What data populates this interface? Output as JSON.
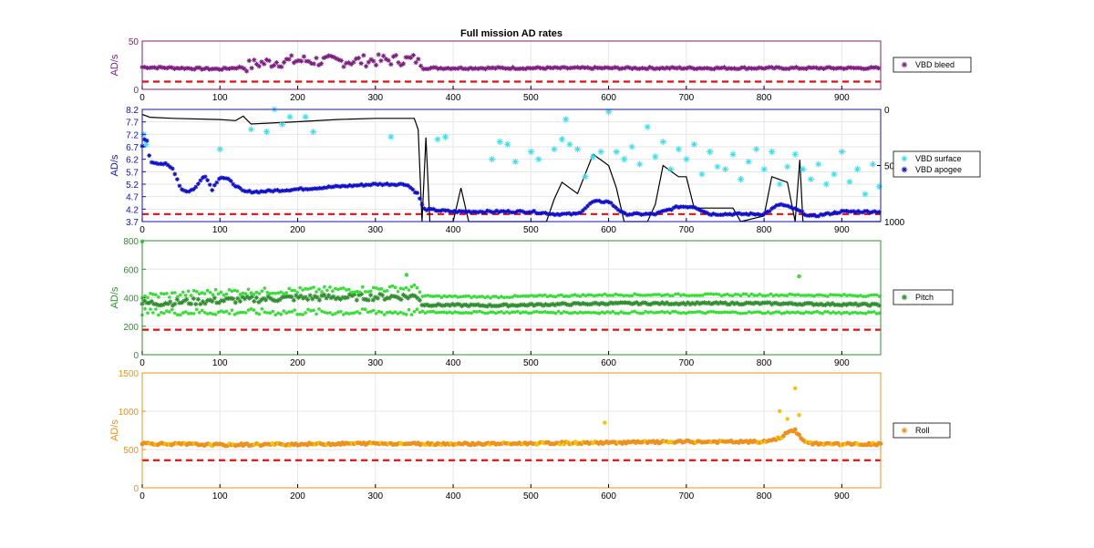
{
  "title": "Full mission AD rates",
  "colors": {
    "vbd_bleed": "#7e1e80",
    "vbd_surface": "#33e0ee",
    "vbd_apogee": "#1010cc",
    "pitch": "#2f8f2f",
    "pitch_light": "#33e033",
    "roll": "#f0901a",
    "roll_light": "#f5c400",
    "threshold": "#dd1111",
    "black_line": "#000000",
    "grid": "#e6e6e6"
  },
  "chart_data": [
    {
      "type": "scatter",
      "ylabel": "AD/s",
      "xlim": [
        0,
        950
      ],
      "ylim": [
        0,
        50
      ],
      "xticks": [
        "0",
        "100",
        "200",
        "300",
        "400",
        "500",
        "600",
        "700",
        "800",
        "900"
      ],
      "yticks": [
        "0",
        "50"
      ],
      "threshold": 8,
      "legend": [
        {
          "label": "VBD bleed",
          "marker": "*"
        }
      ],
      "series": [
        {
          "name": "VBD bleed",
          "segments": [
            {
              "x": [
                0,
                50,
                100,
                130,
                150,
                200,
                250,
                300,
                355,
                360,
                450,
                500,
                600,
                700,
                800,
                950
              ],
              "y": [
                23,
                22,
                21,
                23,
                27,
                30,
                29,
                30,
                31,
                22,
                22,
                22,
                22,
                22,
                22,
                22
              ]
            }
          ]
        }
      ]
    },
    {
      "type": "scatter",
      "ylabel": "AD/s",
      "xlim": [
        0,
        950
      ],
      "ylim": [
        3.7,
        8.2
      ],
      "xticks": [
        "0",
        "100",
        "200",
        "300",
        "400",
        "500",
        "600",
        "700",
        "800",
        "900"
      ],
      "yticks": [
        "3.7",
        "4.2",
        "4.7",
        "5.2",
        "5.7",
        "6.2",
        "6.7",
        "7.2",
        "7.7",
        "8.2"
      ],
      "y2lim": [
        0,
        1000
      ],
      "y2ticks": [
        "0",
        "500",
        "1000"
      ],
      "threshold": 4.0,
      "legend": [
        {
          "label": "VBD surface",
          "marker": "*"
        },
        {
          "label": "VBD apogee",
          "marker": "*"
        }
      ],
      "series": [
        {
          "name": "VBD surface",
          "points": [
            [
              2,
              7.2
            ],
            [
              5,
              6.8
            ],
            [
              100,
              6.6
            ],
            [
              140,
              7.4
            ],
            [
              160,
              7.3
            ],
            [
              170,
              8.2
            ],
            [
              180,
              7.6
            ],
            [
              190,
              7.9
            ],
            [
              210,
              7.9
            ],
            [
              220,
              7.3
            ],
            [
              320,
              7.1
            ],
            [
              380,
              7.0
            ],
            [
              390,
              7.1
            ],
            [
              450,
              6.2
            ],
            [
              460,
              6.9
            ],
            [
              470,
              6.8
            ],
            [
              480,
              6.1
            ],
            [
              500,
              6.5
            ],
            [
              510,
              6.2
            ],
            [
              530,
              6.6
            ],
            [
              540,
              7.0
            ],
            [
              545,
              7.8
            ],
            [
              550,
              6.8
            ],
            [
              560,
              6.6
            ],
            [
              570,
              5.5
            ],
            [
              580,
              6.3
            ],
            [
              590,
              6.5
            ],
            [
              600,
              8.1
            ],
            [
              610,
              6.5
            ],
            [
              620,
              6.2
            ],
            [
              630,
              6.7
            ],
            [
              640,
              6.0
            ],
            [
              650,
              7.5
            ],
            [
              660,
              6.3
            ],
            [
              670,
              6.9
            ],
            [
              680,
              5.8
            ],
            [
              690,
              6.6
            ],
            [
              700,
              6.2
            ],
            [
              710,
              6.8
            ],
            [
              720,
              5.6
            ],
            [
              730,
              6.5
            ],
            [
              740,
              5.9
            ],
            [
              750,
              5.8
            ],
            [
              760,
              6.4
            ],
            [
              770,
              5.4
            ],
            [
              780,
              6.1
            ],
            [
              790,
              6.6
            ],
            [
              800,
              5.8
            ],
            [
              810,
              6.5
            ],
            [
              820,
              5.2
            ],
            [
              830,
              5.9
            ],
            [
              840,
              6.4
            ],
            [
              850,
              5.8
            ],
            [
              860,
              5.4
            ],
            [
              870,
              6.0
            ],
            [
              880,
              5.2
            ],
            [
              890,
              5.6
            ],
            [
              900,
              6.5
            ],
            [
              910,
              5.3
            ],
            [
              920,
              5.8
            ],
            [
              930,
              4.8
            ],
            [
              940,
              6.0
            ],
            [
              948,
              5.1
            ]
          ]
        },
        {
          "name": "VBD apogee",
          "points": [
            [
              0,
              6.7
            ],
            [
              5,
              7.2
            ],
            [
              10,
              6.1
            ],
            [
              30,
              6.0
            ],
            [
              40,
              5.8
            ],
            [
              50,
              5.0
            ],
            [
              60,
              4.9
            ],
            [
              70,
              5.1
            ],
            [
              80,
              5.6
            ],
            [
              90,
              5.0
            ],
            [
              100,
              5.5
            ],
            [
              110,
              5.4
            ],
            [
              130,
              4.9
            ],
            [
              150,
              4.9
            ],
            [
              200,
              5.0
            ],
            [
              250,
              5.1
            ],
            [
              300,
              5.2
            ],
            [
              340,
              5.2
            ],
            [
              355,
              4.8
            ],
            [
              362,
              4.2
            ],
            [
              400,
              4.1
            ],
            [
              420,
              4.1
            ],
            [
              450,
              4.1
            ],
            [
              500,
              4.1
            ],
            [
              530,
              4.0
            ],
            [
              560,
              4.0
            ],
            [
              580,
              4.5
            ],
            [
              600,
              4.5
            ],
            [
              620,
              4.0
            ],
            [
              660,
              4.0
            ],
            [
              690,
              4.3
            ],
            [
              710,
              4.3
            ],
            [
              730,
              4.0
            ],
            [
              800,
              4.0
            ],
            [
              820,
              4.4
            ],
            [
              840,
              4.2
            ],
            [
              860,
              3.9
            ],
            [
              900,
              4.1
            ],
            [
              948,
              4.1
            ]
          ]
        },
        {
          "name": "",
          "axis": "right",
          "line": [
            [
              0,
              45
            ],
            [
              10,
              70
            ],
            [
              40,
              80
            ],
            [
              100,
              90
            ],
            [
              120,
              100
            ],
            [
              130,
              60
            ],
            [
              140,
              130
            ],
            [
              200,
              110
            ],
            [
              250,
              90
            ],
            [
              300,
              80
            ],
            [
              350,
              80
            ],
            [
              355,
              180
            ],
            [
              360,
              1000
            ],
            [
              365,
              250
            ],
            [
              370,
              1000
            ],
            [
              400,
              1000
            ],
            [
              410,
              700
            ],
            [
              420,
              1000
            ],
            [
              520,
              1000
            ],
            [
              530,
              800
            ],
            [
              540,
              650
            ],
            [
              560,
              750
            ],
            [
              580,
              400
            ],
            [
              600,
              500
            ],
            [
              610,
              700
            ],
            [
              620,
              1000
            ],
            [
              650,
              1000
            ],
            [
              660,
              850
            ],
            [
              670,
              500
            ],
            [
              690,
              600
            ],
            [
              700,
              600
            ],
            [
              710,
              880
            ],
            [
              760,
              880
            ],
            [
              770,
              1000
            ],
            [
              800,
              950
            ],
            [
              810,
              600
            ],
            [
              830,
              650
            ],
            [
              840,
              1000
            ],
            [
              846,
              450
            ],
            [
              850,
              1000
            ],
            [
              950,
              1000
            ]
          ]
        }
      ]
    },
    {
      "type": "scatter",
      "ylabel": "AD/s",
      "xlim": [
        0,
        950
      ],
      "ylim": [
        0,
        800
      ],
      "xticks": [
        "0",
        "100",
        "200",
        "300",
        "400",
        "500",
        "600",
        "700",
        "800",
        "900"
      ],
      "yticks": [
        "0",
        "200",
        "400",
        "600",
        "800"
      ],
      "threshold": 175,
      "legend": [
        {
          "label": "Pitch",
          "marker": "*"
        }
      ],
      "series": [
        {
          "name": "Pitch",
          "bands": [
            {
              "x": [
                0,
                100,
                200,
                300,
                355,
                360,
                450,
                500,
                600,
                700,
                800,
                950
              ],
              "y": [
                360,
                380,
                400,
                405,
                410,
                350,
                345,
                350,
                360,
                360,
                360,
                350
              ]
            },
            {
              "x": [
                0,
                100,
                200,
                300,
                355,
                360,
                450,
                500,
                600,
                700,
                800,
                950
              ],
              "y": [
                410,
                440,
                450,
                460,
                470,
                410,
                405,
                410,
                420,
                420,
                420,
                415
              ]
            },
            {
              "x": [
                0,
                950
              ],
              "y": [
                300,
                295
              ]
            }
          ],
          "outliers": [
            [
              0,
              795
            ],
            [
              340,
              560
            ],
            [
              845,
              550
            ]
          ]
        }
      ]
    },
    {
      "type": "scatter",
      "ylabel": "AD/s",
      "xlim": [
        0,
        950
      ],
      "ylim": [
        0,
        1500
      ],
      "xticks": [
        "0",
        "100",
        "200",
        "300",
        "400",
        "500",
        "600",
        "700",
        "800",
        "900"
      ],
      "yticks": [
        "0",
        "500",
        "1000",
        "1500"
      ],
      "threshold": 360,
      "legend": [
        {
          "label": "Roll",
          "marker": "*"
        }
      ],
      "series": [
        {
          "name": "Roll",
          "line": [
            [
              0,
              580
            ],
            [
              100,
              560
            ],
            [
              200,
              570
            ],
            [
              300,
              580
            ],
            [
              360,
              575
            ],
            [
              450,
              575
            ],
            [
              500,
              580
            ],
            [
              600,
              590
            ],
            [
              700,
              600
            ],
            [
              800,
              600
            ],
            [
              820,
              650
            ],
            [
              830,
              720
            ],
            [
              840,
              760
            ],
            [
              845,
              680
            ],
            [
              855,
              580
            ],
            [
              900,
              570
            ],
            [
              950,
              570
            ]
          ],
          "outliers": [
            [
              595,
              850
            ],
            [
              820,
              1000
            ],
            [
              830,
              900
            ],
            [
              840,
              1300
            ],
            [
              845,
              950
            ]
          ]
        }
      ]
    }
  ]
}
